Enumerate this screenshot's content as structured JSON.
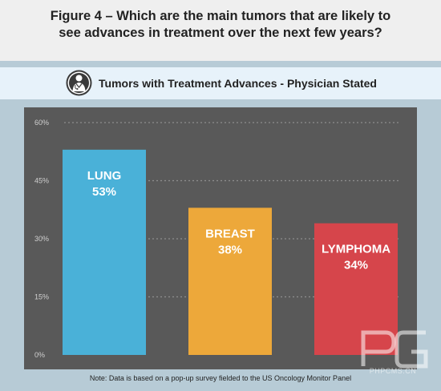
{
  "header": {
    "title_line1": "Figure 4 – Which are the main tumors that are likely to",
    "title_line2": "see advances in treatment over the next few years?"
  },
  "subtitle": {
    "text": "Tumors with Treatment Advances - Physician Stated",
    "icon": "physician-icon"
  },
  "chart_data": {
    "type": "bar",
    "categories": [
      "LUNG",
      "BREAST",
      "LYMPHOMA"
    ],
    "values": [
      53,
      38,
      34
    ],
    "value_labels": [
      "53%",
      "38%",
      "34%"
    ],
    "colors": [
      "#4ab1d8",
      "#eda83a",
      "#d6454b"
    ],
    "yticks": [
      "60%",
      "45%",
      "30%",
      "15%",
      "0%"
    ],
    "ylim": [
      0,
      60
    ],
    "grid": true,
    "background": "#595959"
  },
  "note": "Note: Data is based on a pop-up survey fielded to the US Oncology Monitor Panel",
  "watermark": {
    "text": "PHPCMS.CN"
  }
}
